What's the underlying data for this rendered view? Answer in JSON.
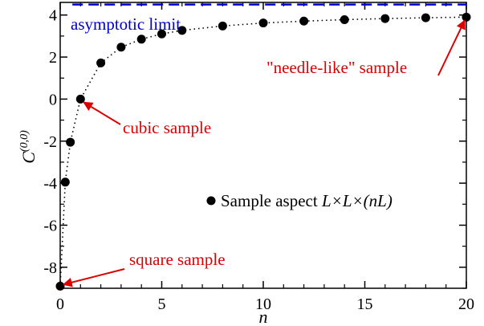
{
  "chart_data": {
    "type": "scatter",
    "title": "",
    "xlabel": "n",
    "ylabel": "C",
    "ylabel_superscript": "(0,0)",
    "xlim": [
      0,
      20
    ],
    "ylim": [
      -9,
      4.6
    ],
    "x_ticks": [
      0,
      5,
      10,
      15,
      20
    ],
    "x_tick_labels": [
      "0",
      "5",
      "10",
      "15",
      "20"
    ],
    "y_ticks": [
      -8,
      -6,
      -4,
      -2,
      0,
      2,
      4
    ],
    "y_tick_labels": [
      "-8",
      "-6",
      "-4",
      "-2",
      "0",
      "2",
      "4"
    ],
    "grid": false,
    "legend": {
      "position": "center-right",
      "text_prefix": "Sample aspect ",
      "text_math": "L×L×(nL)"
    },
    "series": [
      {
        "name": "Sample aspect L×L×(nL)",
        "marker": "circle",
        "color": "#000000",
        "line": "dotted",
        "x": [
          0,
          0.25,
          0.5,
          1,
          2,
          3,
          4,
          5,
          6,
          8,
          10,
          12,
          14,
          16,
          18,
          20
        ],
        "y": [
          -8.9,
          -3.95,
          -2.05,
          0.0,
          1.72,
          2.47,
          2.85,
          3.1,
          3.27,
          3.48,
          3.62,
          3.71,
          3.78,
          3.83,
          3.87,
          3.9
        ]
      }
    ],
    "reference_lines": [
      {
        "label": "asymptotic limit",
        "y": 4.5,
        "color": "#0000cc",
        "style": "dashed"
      }
    ],
    "annotations": [
      {
        "text": "asymptotic limit",
        "color": "#0000cc"
      },
      {
        "text": "\"needle-like\" sample",
        "color": "#dd0000",
        "point_x": 20,
        "point_y": 3.9
      },
      {
        "text": "cubic sample",
        "color": "#dd0000",
        "point_x": 1,
        "point_y": 0.0
      },
      {
        "text": "square sample",
        "color": "#dd0000",
        "point_x": 0,
        "point_y": -8.9
      }
    ]
  }
}
